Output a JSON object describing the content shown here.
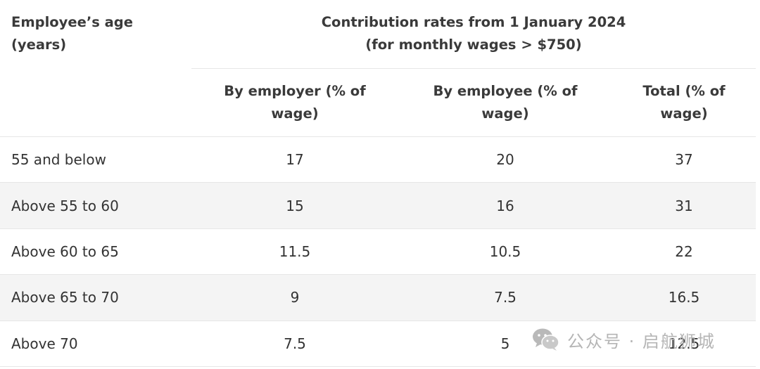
{
  "table": {
    "header": {
      "age_label": "Employee’s age",
      "age_sub": "(years)",
      "group_line1": "Contribution rates from 1 January 2024",
      "group_line2": "(for monthly wages > $750)",
      "columns": [
        {
          "line1": "By employer (% of",
          "line2": "wage)"
        },
        {
          "line1": "By employee (% of",
          "line2": "wage)"
        },
        {
          "line1": "Total (% of",
          "line2": "wage)"
        }
      ]
    },
    "rows": [
      {
        "age": "55 and below",
        "employer": "17",
        "employee": "20",
        "total": "37"
      },
      {
        "age": "Above 55 to 60",
        "employer": "15",
        "employee": "16",
        "total": "31"
      },
      {
        "age": "Above 60 to 65",
        "employer": "11.5",
        "employee": "10.5",
        "total": "22"
      },
      {
        "age": "Above 65 to 70",
        "employer": "9",
        "employee": "7.5",
        "total": "16.5"
      },
      {
        "age": "Above 70",
        "employer": "7.5",
        "employee": "5",
        "total": "12.5"
      }
    ]
  },
  "watermark": {
    "icon": "wechat-icon",
    "text": "公众号 · 启航狮城"
  }
}
